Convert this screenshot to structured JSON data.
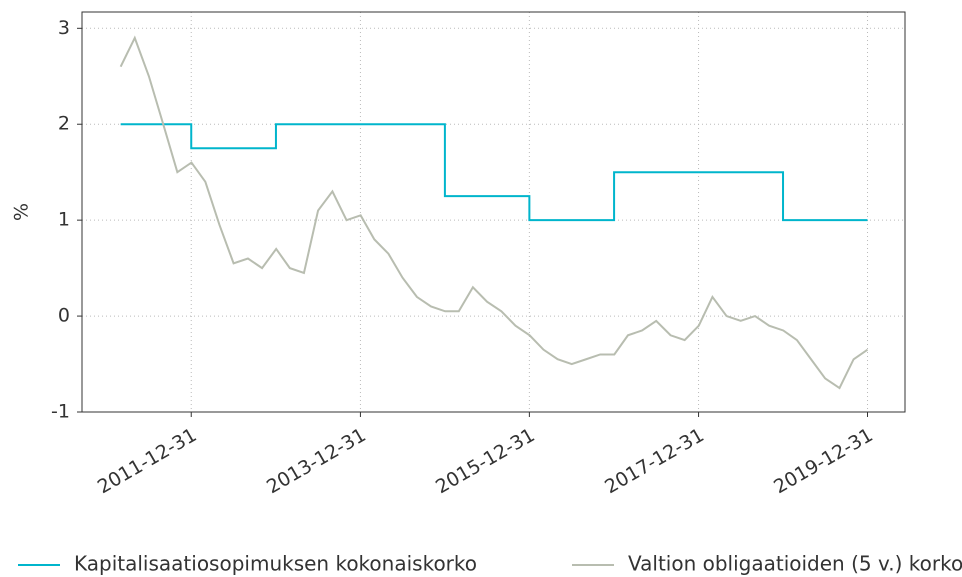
{
  "chart_data": {
    "type": "line",
    "y_label": "%",
    "xlim": [
      "2010-09-15",
      "2020-06-10"
    ],
    "xticks": [
      "2011-12-31",
      "2013-12-31",
      "2015-12-31",
      "2017-12-31",
      "2019-12-31"
    ],
    "ylim": [
      -1,
      3.17
    ],
    "yticks": [
      -1,
      0,
      1,
      2,
      3
    ],
    "grid": true,
    "legend": "bottom",
    "series": [
      {
        "name": "Kapitalisaatiosopimuksen kokonaiskorko",
        "color": "#00b5cc",
        "step": "after",
        "x": [
          "2011-03-01",
          "2011-12-31",
          "2012-12-31",
          "2014-12-31",
          "2015-12-31",
          "2016-12-31",
          "2018-12-31",
          "2019-12-31"
        ],
        "values": [
          2,
          1.75,
          2,
          1.25,
          1,
          1.5,
          1,
          1
        ]
      },
      {
        "name": "Valtion obligaatioiden (5 v.) korko",
        "color": "#b8bdb0",
        "x": [
          "2011-03-01",
          "2011-05-01",
          "2011-07-01",
          "2011-09-01",
          "2011-11-01",
          "2012-01-01",
          "2012-03-01",
          "2012-05-01",
          "2012-07-01",
          "2012-09-01",
          "2012-11-01",
          "2013-01-01",
          "2013-03-01",
          "2013-05-01",
          "2013-07-01",
          "2013-09-01",
          "2013-11-01",
          "2014-01-01",
          "2014-03-01",
          "2014-05-01",
          "2014-07-01",
          "2014-09-01",
          "2014-11-01",
          "2015-01-01",
          "2015-03-01",
          "2015-05-01",
          "2015-07-01",
          "2015-09-01",
          "2015-11-01",
          "2016-01-01",
          "2016-03-01",
          "2016-05-01",
          "2016-07-01",
          "2016-09-01",
          "2016-11-01",
          "2017-01-01",
          "2017-03-01",
          "2017-05-01",
          "2017-07-01",
          "2017-09-01",
          "2017-11-01",
          "2018-01-01",
          "2018-03-01",
          "2018-05-01",
          "2018-07-01",
          "2018-09-01",
          "2018-11-01",
          "2019-01-01",
          "2019-03-01",
          "2019-05-01",
          "2019-07-01",
          "2019-09-01",
          "2019-11-01",
          "2019-12-31"
        ],
        "values": [
          2.6,
          2.9,
          2.5,
          2.0,
          1.5,
          1.6,
          1.4,
          0.95,
          0.55,
          0.6,
          0.5,
          0.7,
          0.5,
          0.45,
          1.1,
          1.3,
          1.0,
          1.05,
          0.8,
          0.65,
          0.4,
          0.2,
          0.1,
          0.05,
          0.05,
          0.3,
          0.15,
          0.05,
          -0.1,
          -0.2,
          -0.35,
          -0.45,
          -0.5,
          -0.45,
          -0.4,
          -0.4,
          -0.2,
          -0.15,
          -0.05,
          -0.2,
          -0.25,
          -0.1,
          0.2,
          0.0,
          -0.05,
          0.0,
          -0.1,
          -0.15,
          -0.25,
          -0.45,
          -0.65,
          -0.75,
          -0.45,
          -0.35
        ]
      }
    ]
  }
}
